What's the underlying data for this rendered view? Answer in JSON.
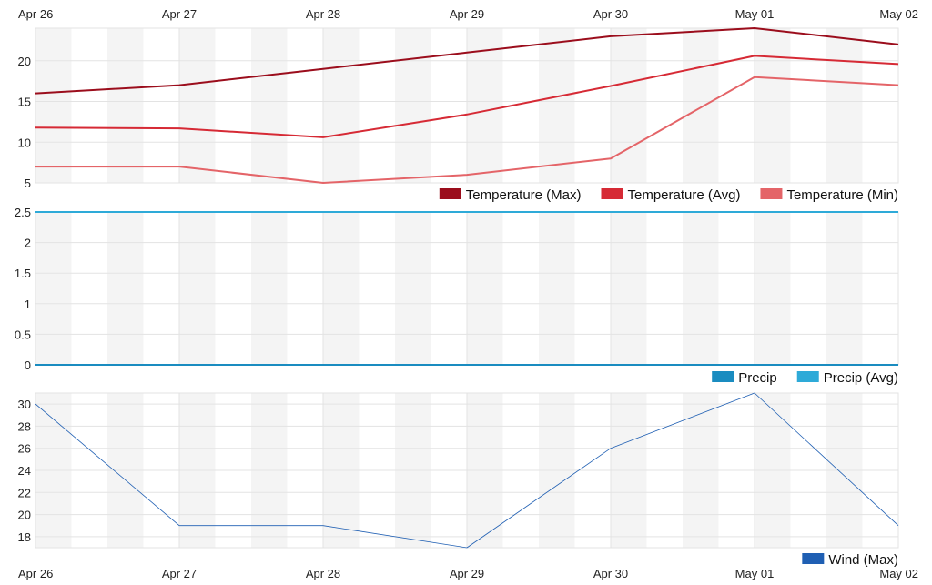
{
  "chart_data": [
    {
      "type": "line",
      "x": [
        "Apr 26",
        "Apr 27",
        "Apr 28",
        "Apr 29",
        "Apr 30",
        "May 01",
        "May 02"
      ],
      "ylim": [
        5,
        24
      ],
      "yticks": [
        "5",
        "10",
        "15",
        "20"
      ],
      "grid": true,
      "legend_position": "bottom-right",
      "series": [
        {
          "name": "Temperature (Max)",
          "color": "#9b0d1c",
          "values": [
            16,
            17,
            19,
            21,
            23,
            24,
            22
          ]
        },
        {
          "name": "Temperature (Avg)",
          "color": "#d62a35",
          "values": [
            11.8,
            11.7,
            10.6,
            13.4,
            16.9,
            20.6,
            19.6
          ]
        },
        {
          "name": "Temperature (Min)",
          "color": "#e46468",
          "values": [
            7,
            7,
            5,
            6,
            8,
            18,
            17
          ]
        }
      ]
    },
    {
      "type": "line",
      "x": [
        "Apr 26",
        "Apr 27",
        "Apr 28",
        "Apr 29",
        "Apr 30",
        "May 01",
        "May 02"
      ],
      "ylim": [
        0,
        2.5
      ],
      "yticks": [
        "0",
        "0.5",
        "1",
        "1.5",
        "2",
        "2.5"
      ],
      "grid": true,
      "legend_position": "bottom-right",
      "series": [
        {
          "name": "Precip",
          "color": "#1a8cc0",
          "values": [
            0,
            0,
            0,
            0,
            0,
            0,
            0
          ]
        },
        {
          "name": "Precip (Avg)",
          "color": "#2eaad8",
          "values": [
            2.5,
            2.5,
            2.5,
            2.5,
            2.5,
            2.5,
            2.5
          ]
        }
      ]
    },
    {
      "type": "line",
      "x": [
        "Apr 26",
        "Apr 27",
        "Apr 28",
        "Apr 29",
        "Apr 30",
        "May 01",
        "May 02"
      ],
      "ylim": [
        17,
        31
      ],
      "yticks": [
        "18",
        "20",
        "22",
        "24",
        "26",
        "28",
        "30"
      ],
      "grid": true,
      "legend_position": "bottom-right",
      "series": [
        {
          "name": "Wind (Max)",
          "color": "#1f5fb3",
          "values": [
            30,
            19,
            19,
            17,
            26,
            31,
            19
          ]
        }
      ]
    }
  ]
}
